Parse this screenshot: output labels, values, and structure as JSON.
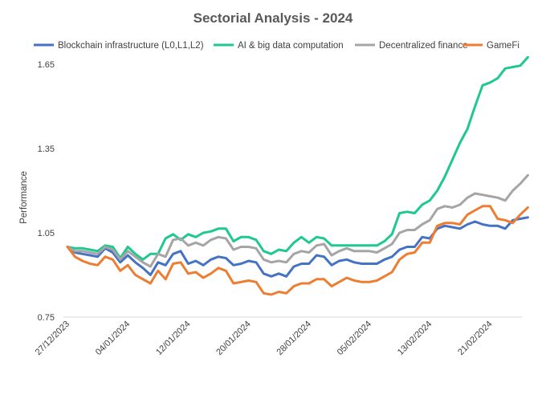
{
  "chart_data": {
    "type": "line",
    "title": "Sectorial Analysis - 2024",
    "ylabel": "Performance",
    "xlabel": "",
    "ylim": [
      0.75,
      1.75
    ],
    "yticks": [
      0.75,
      1.05,
      1.35,
      1.65
    ],
    "ytick_labels": [
      "0.75",
      "1.05",
      "1.35",
      "1.65"
    ],
    "xtick_labels": [
      "27/12/2023",
      "04/01/2024",
      "12/01/2024",
      "20/01/2024",
      "28/01/2024",
      "05/02/2024",
      "13/02/2024",
      "21/02/2024"
    ],
    "xtick_day_index": [
      0,
      8,
      16,
      24,
      32,
      40,
      48,
      56
    ],
    "legend_position": "top",
    "grid": {
      "horizontal": false,
      "vertical": false
    },
    "x_dates": [
      "27/12/2023",
      "28/12/2023",
      "29/12/2023",
      "30/12/2023",
      "31/12/2023",
      "01/01/2024",
      "02/01/2024",
      "03/01/2024",
      "04/01/2024",
      "05/01/2024",
      "06/01/2024",
      "07/01/2024",
      "08/01/2024",
      "09/01/2024",
      "10/01/2024",
      "11/01/2024",
      "12/01/2024",
      "13/01/2024",
      "14/01/2024",
      "15/01/2024",
      "16/01/2024",
      "17/01/2024",
      "18/01/2024",
      "19/01/2024",
      "20/01/2024",
      "21/01/2024",
      "22/01/2024",
      "23/01/2024",
      "24/01/2024",
      "25/01/2024",
      "26/01/2024",
      "27/01/2024",
      "28/01/2024",
      "29/01/2024",
      "30/01/2024",
      "31/01/2024",
      "01/02/2024",
      "02/02/2024",
      "03/02/2024",
      "04/02/2024",
      "05/02/2024",
      "06/02/2024",
      "07/02/2024",
      "08/02/2024",
      "09/02/2024",
      "10/02/2024",
      "11/02/2024",
      "12/02/2024",
      "13/02/2024",
      "14/02/2024",
      "15/02/2024",
      "16/02/2024",
      "17/02/2024",
      "18/02/2024",
      "19/02/2024",
      "20/02/2024",
      "21/02/2024",
      "22/02/2024",
      "23/02/2024",
      "24/02/2024",
      "25/02/2024",
      "26/02/2024"
    ],
    "series": [
      {
        "name": "Blockchain infrastructure (L0,L1,L2)",
        "color": "#4472C4",
        "values": [
          1.0,
          0.98,
          0.975,
          0.97,
          0.965,
          0.995,
          0.98,
          0.945,
          0.97,
          0.945,
          0.925,
          0.9,
          0.945,
          0.935,
          0.975,
          0.985,
          0.94,
          0.95,
          0.935,
          0.955,
          0.965,
          0.96,
          0.935,
          0.94,
          0.95,
          0.945,
          0.905,
          0.895,
          0.905,
          0.895,
          0.93,
          0.94,
          0.94,
          0.97,
          0.965,
          0.935,
          0.95,
          0.955,
          0.945,
          0.94,
          0.94,
          0.94,
          0.955,
          0.965,
          0.99,
          1.0,
          1.0,
          1.035,
          1.03,
          1.065,
          1.075,
          1.07,
          1.065,
          1.08,
          1.09,
          1.08,
          1.075,
          1.075,
          1.065,
          1.095,
          1.1,
          1.105
        ]
      },
      {
        "name": "AI & big data computation",
        "color": "#1FC98E",
        "values": [
          1.0,
          0.995,
          0.995,
          0.99,
          0.985,
          1.005,
          1.0,
          0.96,
          1.0,
          0.975,
          0.955,
          0.975,
          0.975,
          1.03,
          1.045,
          1.025,
          1.045,
          1.035,
          1.05,
          1.055,
          1.065,
          1.065,
          1.02,
          1.035,
          1.035,
          1.025,
          0.985,
          0.975,
          0.99,
          0.985,
          1.015,
          1.035,
          1.015,
          1.035,
          1.03,
          1.005,
          1.005,
          1.005,
          1.005,
          1.005,
          1.005,
          1.005,
          1.02,
          1.045,
          1.12,
          1.125,
          1.12,
          1.15,
          1.165,
          1.2,
          1.25,
          1.31,
          1.37,
          1.42,
          1.5,
          1.575,
          1.585,
          1.6,
          1.635,
          1.64,
          1.645,
          1.675
        ]
      },
      {
        "name": "Decentralized finance",
        "color": "#A5A5A5",
        "values": [
          1.0,
          0.985,
          0.985,
          0.98,
          0.975,
          1.0,
          0.99,
          0.955,
          0.985,
          0.965,
          0.945,
          0.93,
          0.975,
          0.965,
          1.025,
          1.03,
          1.005,
          1.015,
          1.005,
          1.025,
          1.035,
          1.03,
          0.99,
          1.0,
          1.0,
          0.995,
          0.955,
          0.945,
          0.95,
          0.945,
          0.975,
          0.985,
          0.98,
          1.005,
          1.01,
          0.97,
          0.985,
          0.995,
          0.985,
          0.985,
          0.985,
          0.98,
          0.995,
          1.01,
          1.05,
          1.06,
          1.06,
          1.08,
          1.095,
          1.135,
          1.145,
          1.14,
          1.15,
          1.175,
          1.19,
          1.185,
          1.18,
          1.175,
          1.165,
          1.2,
          1.225,
          1.255
        ]
      },
      {
        "name": "GameFi",
        "color": "#ED7D31",
        "values": [
          1.0,
          0.965,
          0.95,
          0.94,
          0.935,
          0.965,
          0.955,
          0.915,
          0.935,
          0.9,
          0.885,
          0.87,
          0.915,
          0.885,
          0.94,
          0.945,
          0.905,
          0.91,
          0.89,
          0.905,
          0.925,
          0.915,
          0.87,
          0.875,
          0.88,
          0.875,
          0.835,
          0.83,
          0.84,
          0.835,
          0.86,
          0.87,
          0.87,
          0.885,
          0.885,
          0.86,
          0.875,
          0.89,
          0.88,
          0.875,
          0.875,
          0.88,
          0.895,
          0.91,
          0.955,
          0.975,
          0.98,
          1.015,
          1.015,
          1.075,
          1.085,
          1.085,
          1.08,
          1.115,
          1.13,
          1.145,
          1.145,
          1.1,
          1.095,
          1.085,
          1.115,
          1.14
        ]
      }
    ]
  }
}
